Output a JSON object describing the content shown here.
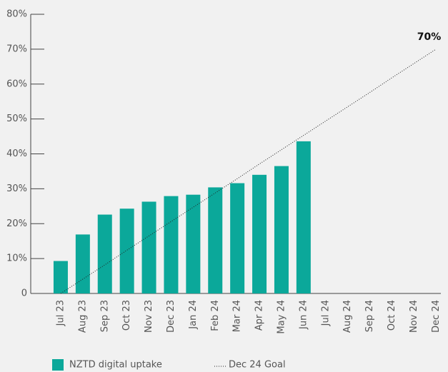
{
  "chart_data": {
    "type": "bar",
    "categories": [
      "Jul 23",
      "Aug 23",
      "Sep 23",
      "Oct 23",
      "Nov 23",
      "Dec 23",
      "Jan 24",
      "Feb 24",
      "Mar 24",
      "Apr 24",
      "May 24",
      "Jun 24",
      "Jul 24",
      "Aug 24",
      "Sep 24",
      "Oct 24",
      "Nov 24",
      "Dec 24"
    ],
    "series": [
      {
        "name": "NZTD digital uptake",
        "type": "bar",
        "color": "#0ba89a",
        "values": [
          9.3,
          16.9,
          22.6,
          24.3,
          26.3,
          27.9,
          28.3,
          30.4,
          31.6,
          34.0,
          36.5,
          43.6,
          null,
          null,
          null,
          null,
          null,
          null
        ]
      },
      {
        "name": "Dec 24 Goal",
        "type": "line",
        "color": "#222222",
        "values": [
          0,
          4.1,
          8.2,
          12.4,
          16.5,
          20.6,
          24.7,
          28.8,
          32.9,
          37.1,
          41.2,
          45.3,
          49.4,
          53.5,
          57.6,
          61.8,
          65.9,
          70
        ],
        "value_labels": [
          null,
          null,
          null,
          null,
          null,
          null,
          null,
          null,
          null,
          null,
          null,
          null,
          null,
          null,
          null,
          null,
          null,
          "70%"
        ]
      }
    ],
    "ylim": [
      0,
      80
    ],
    "yticks": [
      0,
      {
        "value": 10,
        "label": "10%"
      },
      {
        "value": 20,
        "label": "20%"
      },
      {
        "value": 30,
        "label": "30%"
      },
      {
        "value": 40,
        "label": "40%"
      },
      {
        "value": 50,
        "label": "50%"
      },
      {
        "value": 60,
        "label": "60%"
      },
      {
        "value": 70,
        "label": "70%"
      },
      {
        "value": 80,
        "label": "80%"
      }
    ],
    "grid": false
  }
}
